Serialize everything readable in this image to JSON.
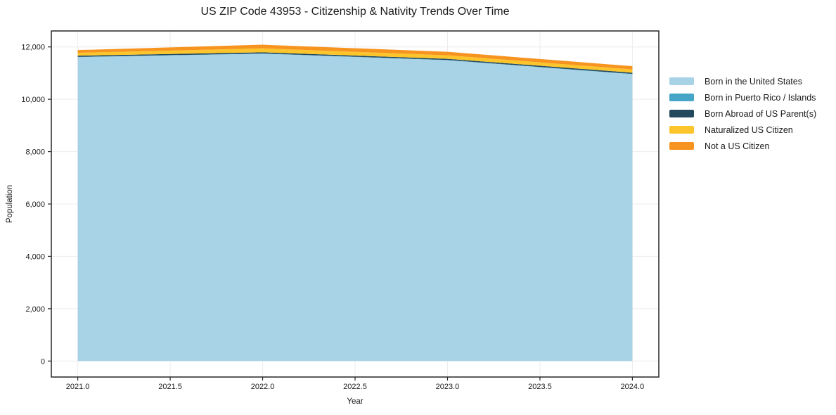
{
  "title": "US ZIP Code 43953 - Citizenship & Nativity Trends Over Time",
  "chart_data": {
    "type": "area",
    "stacked": true,
    "title": "US ZIP Code 43953 - Citizenship & Nativity Trends Over Time",
    "xlabel": "Year",
    "ylabel": "Population",
    "x": [
      2021,
      2022,
      2023,
      2024
    ],
    "series": [
      {
        "name": "Born in the United States",
        "color": "#a8d3e7",
        "values": [
          11610,
          11740,
          11490,
          10960
        ]
      },
      {
        "name": "Born in Puerto Rico / Islands",
        "color": "#45a5c6",
        "values": [
          10,
          10,
          10,
          10
        ]
      },
      {
        "name": "Born Abroad of US Parent(s)",
        "color": "#23495e",
        "values": [
          45,
          45,
          45,
          45
        ]
      },
      {
        "name": "Naturalized US Citizen",
        "color": "#fcc52c",
        "values": [
          110,
          150,
          135,
          125
        ]
      },
      {
        "name": "Not a US Citizen",
        "color": "#f79420",
        "values": [
          105,
          140,
          135,
          125
        ]
      }
    ],
    "xlim": [
      2020.857,
      2024.143
    ],
    "ylim": [
      -610,
      12610
    ],
    "x_ticks": [
      2021.0,
      2021.5,
      2022.0,
      2022.5,
      2023.0,
      2023.5,
      2024.0
    ],
    "x_tick_labels": [
      "2021.0",
      "2021.5",
      "2022.0",
      "2022.5",
      "2023.0",
      "2023.5",
      "2024.0"
    ],
    "y_ticks": [
      0,
      2000,
      4000,
      6000,
      8000,
      10000,
      12000
    ],
    "y_tick_labels": [
      "0",
      "2,000",
      "4,000",
      "6,000",
      "8,000",
      "10,000",
      "12,000"
    ],
    "grid": true,
    "legend_position": "right-outside"
  },
  "style_colors": {
    "grid": "#ececec",
    "spine": "#262626",
    "tick": "#262626",
    "text": "#1a1a1a",
    "background": "#ffffff"
  }
}
